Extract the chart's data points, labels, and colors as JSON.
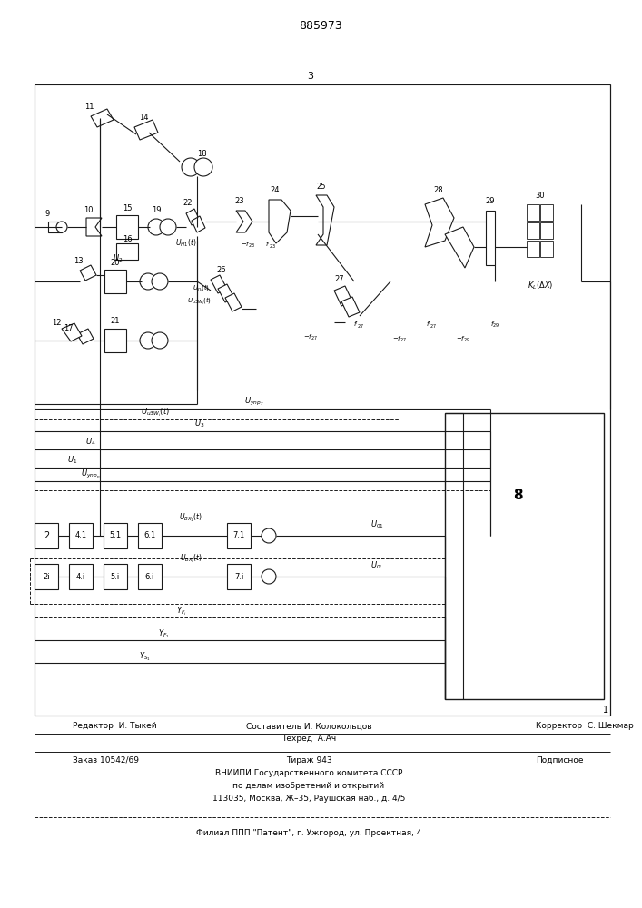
{
  "title": "885973",
  "bg": "#ffffff",
  "lc": "#1a1a1a",
  "fig_w": 7.07,
  "fig_h": 10.0,
  "footer": {
    "line1_left": "Редактор  И. Тыкей",
    "line1_center": "Составитель И. Колокольцов",
    "line1_center2": "Техред  А.Ач",
    "line1_right": "Корректор  С. Шекмар",
    "line2_left": "Заказ 10542/69",
    "line2_center": "Тираж 943",
    "line2_right": "Подписное",
    "line3": "ВНИИПИ Государственного комитета СССР",
    "line4": "по делам изобретений и открытий",
    "line5": "113035, Москва, Ж–35, Раушская наб., д. 4/5",
    "line6": "Филиал ППП \"Патент\", г. Ужгород, ул. Проектная, 4"
  }
}
